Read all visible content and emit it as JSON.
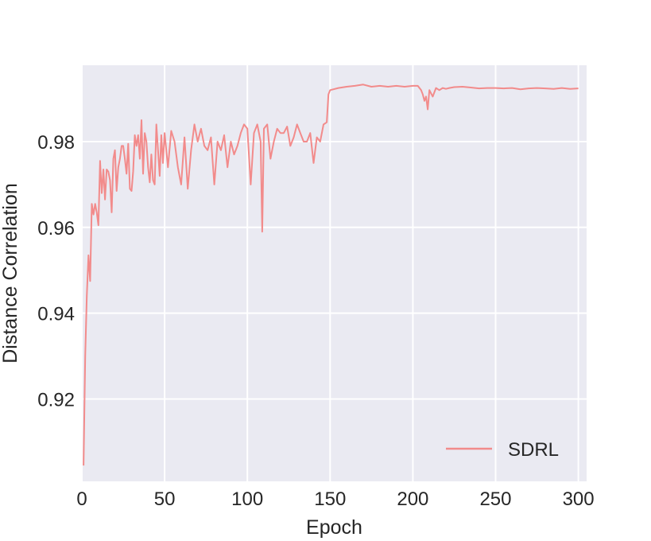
{
  "chart_data": {
    "type": "line",
    "xlabel": "Epoch",
    "ylabel": "Distance Correlation",
    "xlim": [
      0,
      305
    ],
    "ylim": [
      0.9008,
      0.9978
    ],
    "xticks": [
      0,
      50,
      100,
      150,
      200,
      250,
      300
    ],
    "xtick_labels": [
      "0",
      "50",
      "100",
      "150",
      "200",
      "250",
      "300"
    ],
    "yticks": [
      0.92,
      0.94,
      0.96,
      0.98
    ],
    "ytick_labels": [
      "0.92",
      "0.94",
      "0.96",
      "0.98"
    ],
    "grid": true,
    "legend_position": "bottom-right",
    "series": [
      {
        "name": "SDRL",
        "color": "#f28b8b",
        "x": [
          1,
          2,
          3,
          4,
          5,
          6,
          7,
          8,
          9,
          10,
          11,
          12,
          13,
          14,
          15,
          16,
          17,
          18,
          19,
          20,
          21,
          22,
          23,
          24,
          25,
          26,
          27,
          28,
          29,
          30,
          31,
          32,
          33,
          34,
          35,
          36,
          37,
          38,
          39,
          40,
          41,
          42,
          43,
          44,
          45,
          46,
          47,
          48,
          49,
          50,
          52,
          54,
          56,
          58,
          60,
          62,
          64,
          66,
          68,
          70,
          72,
          74,
          76,
          78,
          80,
          82,
          84,
          86,
          88,
          90,
          92,
          94,
          96,
          98,
          100,
          102,
          104,
          106,
          108,
          109,
          110,
          112,
          114,
          116,
          118,
          120,
          122,
          124,
          126,
          128,
          130,
          132,
          134,
          136,
          138,
          140,
          142,
          144,
          146,
          148,
          149,
          150,
          155,
          160,
          165,
          170,
          175,
          180,
          185,
          190,
          195,
          200,
          203,
          205,
          206,
          207,
          208,
          209,
          210,
          212,
          214,
          216,
          218,
          220,
          222,
          225,
          230,
          235,
          240,
          245,
          250,
          255,
          260,
          265,
          270,
          275,
          280,
          285,
          290,
          295,
          300
        ],
        "values": [
          0.9045,
          0.93,
          0.944,
          0.9535,
          0.9475,
          0.9655,
          0.963,
          0.9655,
          0.9635,
          0.9605,
          0.9755,
          0.968,
          0.9735,
          0.9665,
          0.9735,
          0.973,
          0.971,
          0.9635,
          0.976,
          0.978,
          0.9685,
          0.974,
          0.976,
          0.979,
          0.979,
          0.976,
          0.9725,
          0.9795,
          0.969,
          0.9685,
          0.973,
          0.9815,
          0.979,
          0.9815,
          0.976,
          0.985,
          0.9725,
          0.982,
          0.98,
          0.974,
          0.9705,
          0.977,
          0.971,
          0.97,
          0.984,
          0.978,
          0.972,
          0.9815,
          0.975,
          0.982,
          0.974,
          0.9825,
          0.98,
          0.974,
          0.97,
          0.981,
          0.969,
          0.978,
          0.984,
          0.98,
          0.983,
          0.979,
          0.978,
          0.981,
          0.97,
          0.98,
          0.978,
          0.9815,
          0.974,
          0.98,
          0.977,
          0.979,
          0.982,
          0.984,
          0.983,
          0.97,
          0.982,
          0.984,
          0.98,
          0.959,
          0.983,
          0.984,
          0.976,
          0.98,
          0.983,
          0.982,
          0.982,
          0.9835,
          0.979,
          0.981,
          0.984,
          0.982,
          0.98,
          0.98,
          0.982,
          0.975,
          0.981,
          0.98,
          0.984,
          0.9845,
          0.991,
          0.992,
          0.9925,
          0.9928,
          0.993,
          0.9933,
          0.9928,
          0.993,
          0.9928,
          0.993,
          0.9928,
          0.993,
          0.993,
          0.992,
          0.991,
          0.9895,
          0.9905,
          0.9875,
          0.992,
          0.9905,
          0.9925,
          0.992,
          0.9925,
          0.9923,
          0.9925,
          0.9927,
          0.9928,
          0.9926,
          0.9924,
          0.9925,
          0.9925,
          0.9924,
          0.9925,
          0.9922,
          0.9924,
          0.9925,
          0.9924,
          0.9923,
          0.9925,
          0.9923,
          0.9924
        ]
      }
    ]
  }
}
